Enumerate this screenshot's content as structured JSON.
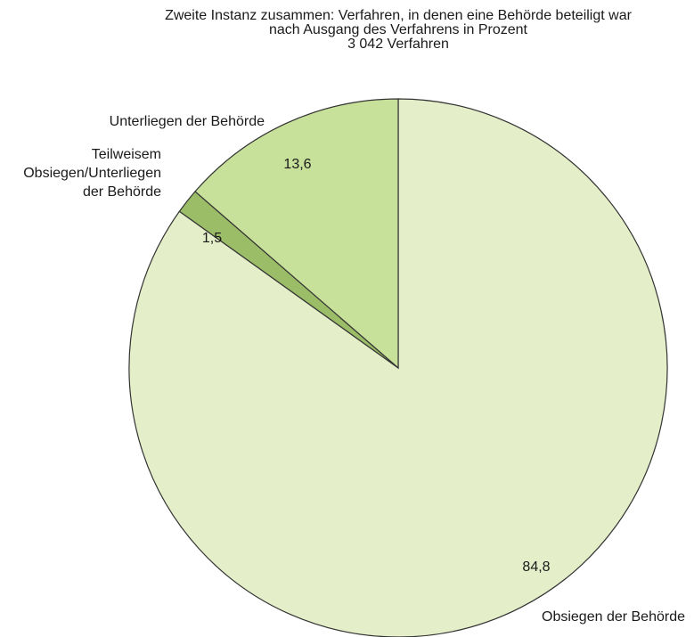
{
  "chart_data": {
    "type": "pie",
    "title": [
      "Zweite Instanz zusammen: Verfahren, in denen eine Behörde beteiligt war",
      "nach Ausgang des Verfahrens in Prozent",
      "3 042 Verfahren"
    ],
    "categories": [
      "Obsiegen der Behörde",
      "Teilweisem\nObsiegen/Unterliegen\nder Behörde",
      "Unterliegen der Behörde"
    ],
    "values": [
      84.8,
      1.5,
      13.6
    ],
    "value_labels": [
      "84,8",
      "1,5",
      "13,6"
    ],
    "colors": [
      "#e4efc9",
      "#9bbd68",
      "#c7e09a"
    ]
  }
}
